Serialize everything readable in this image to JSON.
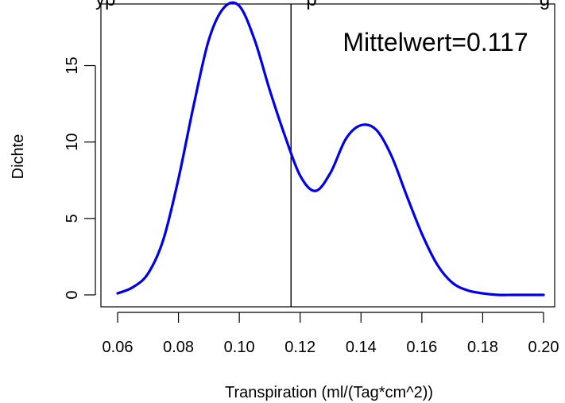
{
  "chart_data": {
    "type": "line",
    "title": "",
    "xlabel": "Transpiration (ml/(Tag*cm^2))",
    "ylabel": "Dichte",
    "xlim": [
      0.06,
      0.2
    ],
    "ylim": [
      0,
      19
    ],
    "x_ticks": [
      0.06,
      0.08,
      0.1,
      0.12,
      0.14,
      0.16,
      0.18,
      0.2
    ],
    "x_tick_labels": [
      "0.06",
      "0.08",
      "0.10",
      "0.12",
      "0.14",
      "0.16",
      "0.18",
      "0.20"
    ],
    "y_ticks": [
      0,
      5,
      10,
      15
    ],
    "y_tick_labels": [
      "0",
      "5",
      "10",
      "15"
    ],
    "grid": false,
    "series": [
      {
        "color": "#0000ee",
        "x": [
          0.06,
          0.065,
          0.07,
          0.075,
          0.08,
          0.085,
          0.09,
          0.095,
          0.1,
          0.105,
          0.11,
          0.115,
          0.12,
          0.125,
          0.13,
          0.135,
          0.14,
          0.145,
          0.15,
          0.155,
          0.16,
          0.165,
          0.17,
          0.175,
          0.18,
          0.185,
          0.19,
          0.195,
          0.2
        ],
        "y": [
          0.1,
          0.5,
          1.4,
          3.6,
          7.6,
          12.4,
          16.7,
          18.8,
          18.9,
          16.7,
          13.4,
          10.4,
          7.8,
          6.8,
          8.0,
          10.2,
          11.1,
          10.8,
          9.1,
          6.5,
          4.0,
          2.0,
          0.8,
          0.3,
          0.1,
          0.0,
          0.0,
          0.0,
          0.0
        ]
      }
    ],
    "vline": {
      "x": 0.117,
      "color": "#000000"
    },
    "annotation": {
      "text": "Mittelwert=0.117"
    },
    "partial_top_text": "yp                                    p                                          g"
  }
}
